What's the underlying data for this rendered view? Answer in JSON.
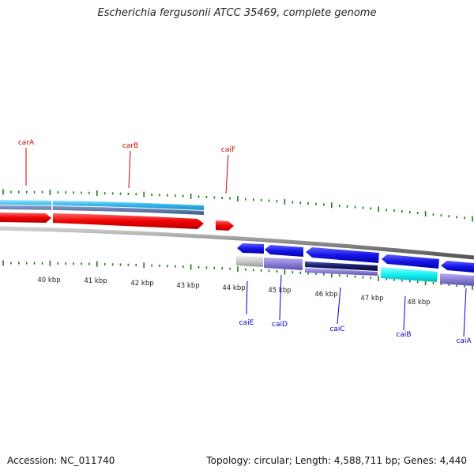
{
  "title": "Escherichia fergusonii ATCC 35469, complete genome",
  "footer": {
    "accession": "Accession: NC_011740",
    "summary": "Topology: circular; Length: 4,588,711 bp; Genes: 4,440"
  },
  "colors": {
    "forward_label": "#cc0000",
    "reverse_label": "#0000cc",
    "tick": "#1a7a1a",
    "backbone": "#8a8a8a",
    "red_cds": "#ee0000",
    "blue_cds": "#1515e6",
    "cyan_band": "#33b5ee",
    "steel_band": "#5577aa",
    "light_purple": "#8a7fd6",
    "dark_navy": "#151a66",
    "cyan_bright": "#10f0f0",
    "gray_band": "#c8c8c8"
  },
  "axis": {
    "tick_labels": [
      "40 kbp",
      "41 kbp",
      "42 kbp",
      "43 kbp",
      "44 kbp",
      "45 kbp",
      "46 kbp",
      "47 kbp",
      "48 kbp"
    ]
  },
  "genes_forward": [
    {
      "name": "carA"
    },
    {
      "name": "carB"
    },
    {
      "name": "caiF"
    }
  ],
  "genes_reverse": [
    {
      "name": "caiE"
    },
    {
      "name": "caiD"
    },
    {
      "name": "caiC"
    },
    {
      "name": "caiB"
    },
    {
      "name": "caiA"
    }
  ]
}
